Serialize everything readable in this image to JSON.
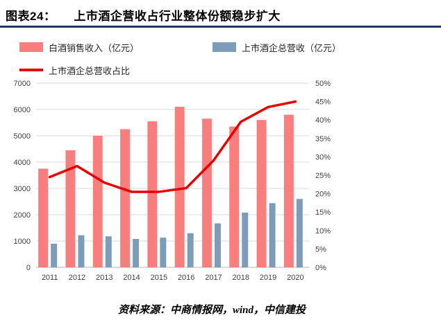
{
  "header": {
    "label": "图表24：",
    "title": "上市酒企营收占行业整体份额稳步扩大",
    "rule_color": "#17375e"
  },
  "chart_data": {
    "type": "bar",
    "subtype": "bar+line combo",
    "categories": [
      "2011",
      "2012",
      "2013",
      "2014",
      "2015",
      "2016",
      "2017",
      "2018",
      "2019",
      "2020"
    ],
    "series": [
      {
        "name": "白酒销售收入（亿元）",
        "type": "bar",
        "axis": "left",
        "color": "#f97f7f",
        "values": [
          3750,
          4450,
          5000,
          5250,
          5550,
          6100,
          5650,
          5350,
          5600,
          5800
        ]
      },
      {
        "name": "上市酒企总营收（亿元）",
        "type": "bar",
        "axis": "left",
        "color": "#7d9cba",
        "values": [
          900,
          1220,
          1180,
          1080,
          1130,
          1300,
          1670,
          2080,
          2440,
          2600
        ]
      },
      {
        "name": "上市酒企总营收占比",
        "type": "line",
        "axis": "right",
        "color": "#e60000",
        "values": [
          24.5,
          27.5,
          23,
          20.5,
          20.5,
          21.5,
          29,
          39.5,
          43.5,
          45
        ]
      }
    ],
    "left_axis": {
      "min": 0,
      "max": 7000,
      "step": 1000,
      "ticks": [
        "0",
        "1000",
        "2000",
        "3000",
        "4000",
        "5000",
        "6000",
        "7000"
      ]
    },
    "right_axis": {
      "min": 0,
      "max": 50,
      "step": 5,
      "ticks": [
        "0%",
        "5%",
        "10%",
        "15%",
        "20%",
        "25%",
        "30%",
        "35%",
        "40%",
        "45%",
        "50%"
      ]
    },
    "grid": true,
    "legend_position": "top",
    "grid_color": "#d9d9d9",
    "axis_text_color": "#404040"
  },
  "footer": {
    "source": "资料来源：中商情报网，wind，中信建投"
  }
}
